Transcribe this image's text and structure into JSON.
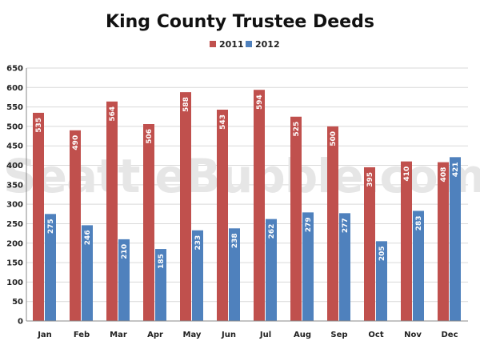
{
  "watermark": "SeattleBubble.com",
  "chart_data": {
    "type": "bar",
    "title": "King County Trustee Deeds",
    "categories": [
      "Jan",
      "Feb",
      "Mar",
      "Apr",
      "May",
      "Jun",
      "Jul",
      "Aug",
      "Sep",
      "Oct",
      "Nov",
      "Dec"
    ],
    "series": [
      {
        "name": "2011",
        "color": "#c0504d",
        "values": [
          535,
          490,
          564,
          506,
          588,
          543,
          594,
          525,
          500,
          395,
          410,
          408
        ]
      },
      {
        "name": "2012",
        "color": "#4f81bd",
        "values": [
          275,
          246,
          210,
          185,
          233,
          238,
          262,
          279,
          277,
          205,
          283,
          421
        ]
      }
    ],
    "ylim": [
      0,
      650
    ],
    "yticks": [
      0,
      50,
      100,
      150,
      200,
      250,
      300,
      350,
      400,
      450,
      500,
      550,
      600,
      650
    ],
    "grid": true,
    "legend": "top-center",
    "xlabel": "",
    "ylabel": ""
  }
}
